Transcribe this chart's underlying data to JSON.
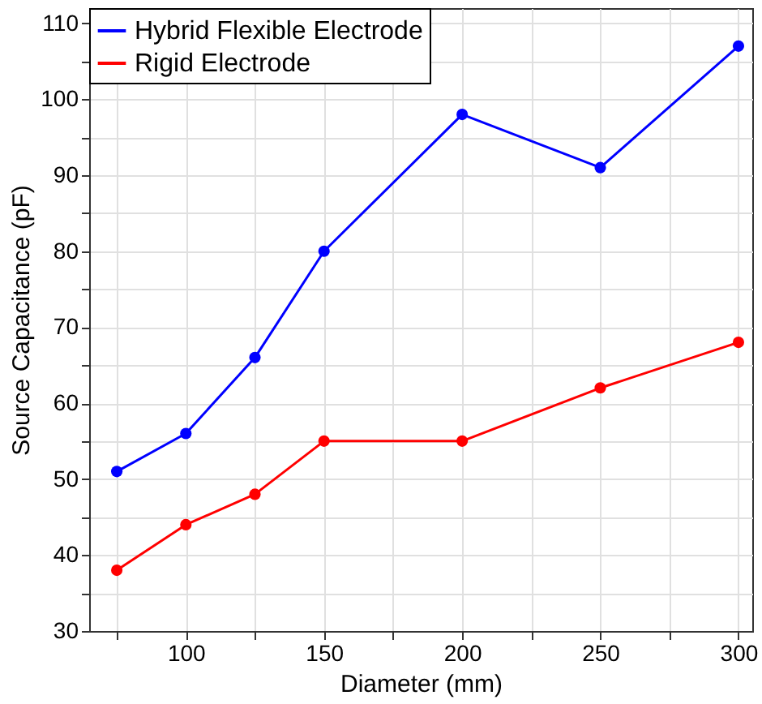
{
  "chart_data": {
    "type": "line",
    "xlabel": "Diameter (mm)",
    "ylabel": "Source Capacitance (pF)",
    "x": [
      75,
      100,
      125,
      150,
      200,
      250,
      300
    ],
    "series": [
      {
        "name": "Hybrid Flexible Electrode",
        "color": "#0000ff",
        "values": [
          51,
          56,
          66,
          80,
          98,
          91,
          107
        ]
      },
      {
        "name": "Rigid Electrode",
        "color": "#ff0000",
        "values": [
          38,
          44,
          48,
          55,
          55,
          62,
          68
        ]
      }
    ],
    "xlim": [
      65,
      305
    ],
    "xticks": [
      {
        "value": 75,
        "label": null
      },
      100,
      {
        "value": 125,
        "label": null
      },
      150,
      {
        "value": 175,
        "label": null
      },
      200,
      {
        "value": 225,
        "label": null
      },
      250,
      {
        "value": 275,
        "label": null
      },
      300
    ],
    "ylim": [
      30,
      112
    ],
    "yticks": [
      30,
      {
        "value": 35,
        "label": null
      },
      40,
      {
        "value": 45,
        "label": null
      },
      50,
      {
        "value": 55,
        "label": null
      },
      60,
      {
        "value": 65,
        "label": null
      },
      70,
      {
        "value": 75,
        "label": null
      },
      80,
      {
        "value": 85,
        "label": null
      },
      90,
      {
        "value": 95,
        "label": null
      },
      100,
      {
        "value": 105,
        "label": null
      },
      110
    ],
    "grid": true,
    "legend": "top left",
    "marker": "circle",
    "line_style": "solid"
  }
}
